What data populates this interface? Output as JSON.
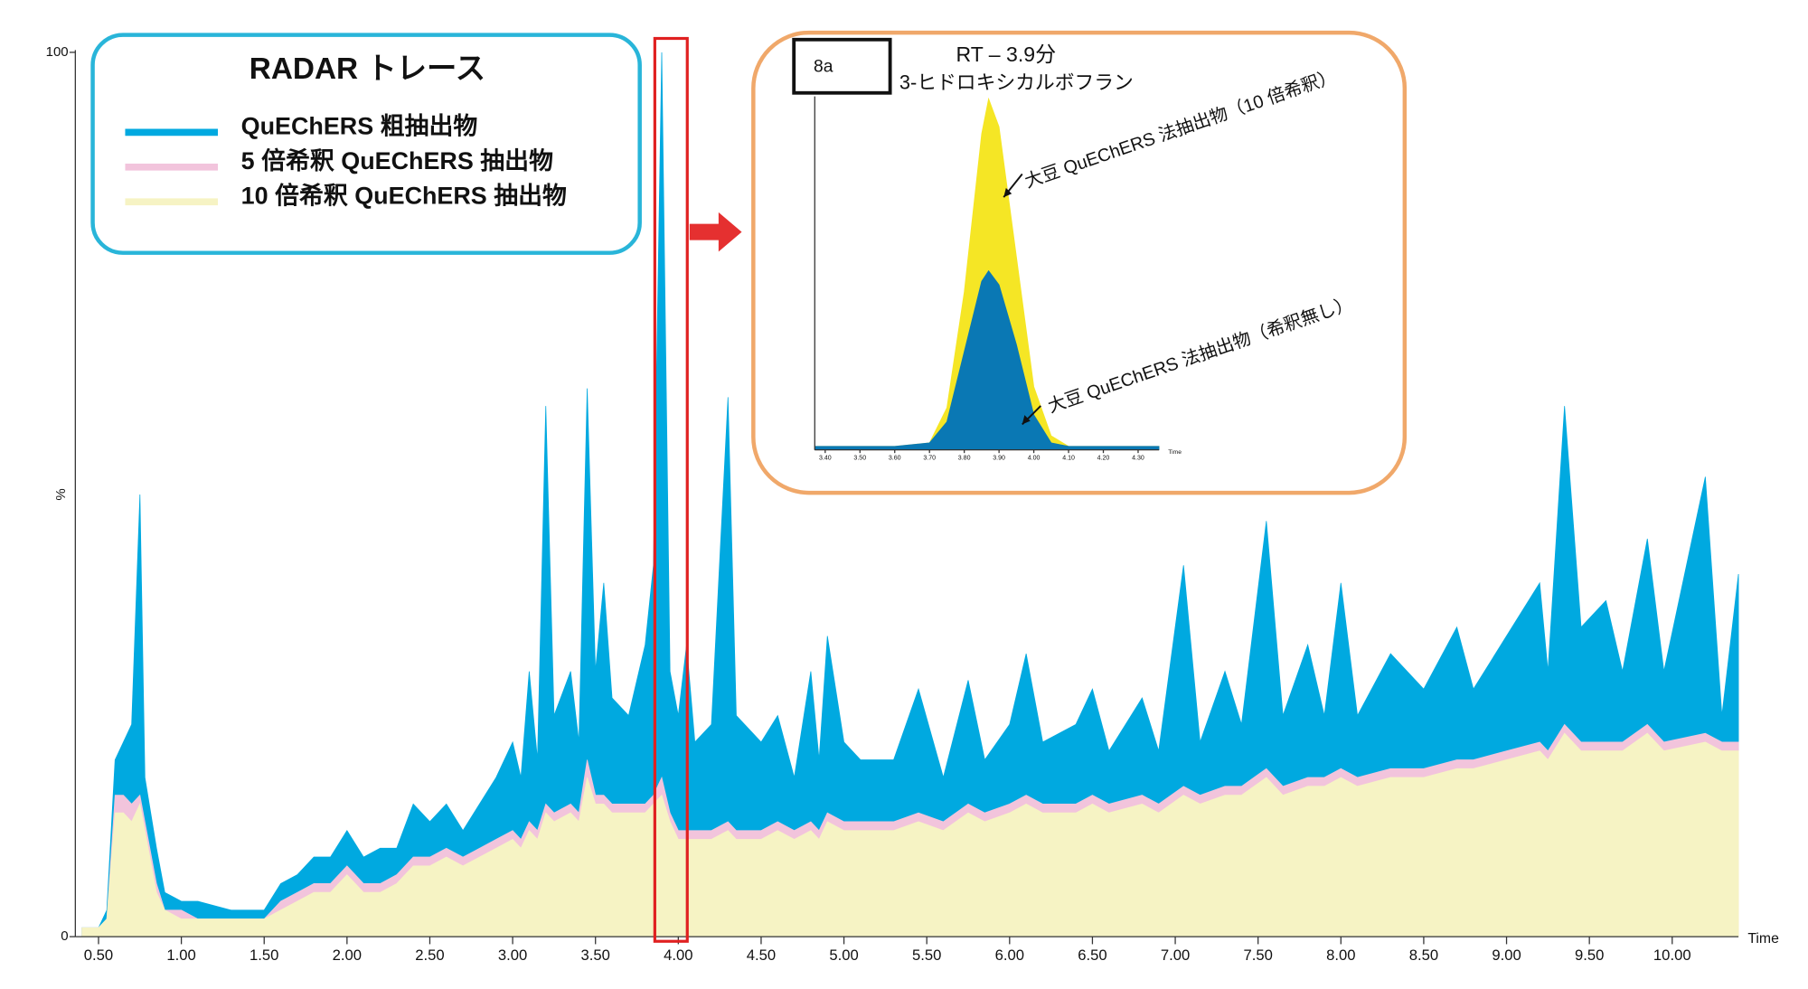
{
  "chart_data": [
    {
      "type": "area",
      "legend_title": "RADAR トレース",
      "x_label": "Time",
      "y_label": "%",
      "xlim": [
        0.36,
        10.4
      ],
      "ylim": [
        0,
        100
      ],
      "yticks": [
        0,
        100
      ],
      "xticks": [
        {
          "value": 0.5,
          "label": "0.50"
        },
        {
          "value": 1,
          "label": "1.00"
        },
        {
          "value": 1.5,
          "label": "1.50"
        },
        {
          "value": 2,
          "label": "2.00"
        },
        {
          "value": 2.5,
          "label": "2.50"
        },
        {
          "value": 3,
          "label": "3.00"
        },
        {
          "value": 3.5,
          "label": "3.50"
        },
        {
          "value": 4,
          "label": "4.00"
        },
        {
          "value": 4.5,
          "label": "4.50"
        },
        {
          "value": 5,
          "label": "5.00"
        },
        {
          "value": 5.5,
          "label": "5.50"
        },
        {
          "value": 6,
          "label": "6.00"
        },
        {
          "value": 6.5,
          "label": "6.50"
        },
        {
          "value": 7,
          "label": "7.00"
        },
        {
          "value": 7.5,
          "label": "7.50"
        },
        {
          "value": 8,
          "label": "8.00"
        },
        {
          "value": 8.5,
          "label": "8.50"
        },
        {
          "value": 9,
          "label": "9.00"
        },
        {
          "value": 9.5,
          "label": "9.50"
        },
        {
          "value": 10,
          "label": "10.00"
        }
      ],
      "x": [
        0.4,
        0.5,
        0.55,
        0.6,
        0.65,
        0.7,
        0.75,
        0.78,
        0.85,
        0.9,
        1.0,
        1.1,
        1.3,
        1.5,
        1.6,
        1.7,
        1.8,
        1.9,
        2.0,
        2.1,
        2.2,
        2.3,
        2.4,
        2.5,
        2.6,
        2.7,
        2.8,
        2.9,
        3.0,
        3.05,
        3.1,
        3.15,
        3.2,
        3.25,
        3.35,
        3.4,
        3.45,
        3.5,
        3.55,
        3.6,
        3.7,
        3.8,
        3.85,
        3.9,
        3.95,
        4.0,
        4.05,
        4.1,
        4.2,
        4.3,
        4.35,
        4.5,
        4.6,
        4.7,
        4.8,
        4.85,
        4.9,
        5.0,
        5.1,
        5.3,
        5.45,
        5.6,
        5.75,
        5.85,
        6.0,
        6.1,
        6.2,
        6.4,
        6.5,
        6.6,
        6.8,
        6.9,
        7.05,
        7.15,
        7.3,
        7.4,
        7.55,
        7.65,
        7.8,
        7.9,
        8.0,
        8.1,
        8.3,
        8.5,
        8.7,
        8.8,
        9.0,
        9.2,
        9.25,
        9.35,
        9.45,
        9.6,
        9.7,
        9.85,
        9.95,
        10.2,
        10.3,
        10.4
      ],
      "series": [
        {
          "name": "QuEChERS 粗抽出物",
          "color": "#00a9e0",
          "values": [
            1,
            1,
            3,
            20,
            22,
            24,
            50,
            18,
            10,
            5,
            4,
            4,
            3,
            3,
            6,
            7,
            9,
            9,
            12,
            9,
            10,
            10,
            15,
            13,
            15,
            12,
            15,
            18,
            22,
            18,
            30,
            20,
            60,
            25,
            30,
            22,
            62,
            30,
            40,
            27,
            25,
            33,
            42,
            100,
            30,
            25,
            33,
            22,
            24,
            61,
            25,
            22,
            25,
            18,
            30,
            20,
            34,
            22,
            20,
            20,
            28,
            18,
            29,
            20,
            24,
            32,
            22,
            24,
            28,
            21,
            27,
            21,
            42,
            22,
            30,
            24,
            47,
            25,
            33,
            25,
            40,
            25,
            32,
            28,
            35,
            28,
            34,
            40,
            30,
            60,
            35,
            38,
            30,
            45,
            30,
            52,
            25,
            41
          ]
        },
        {
          "name": "5 倍希釈 QuEChERS 抽出物",
          "color": "#f2c4dc",
          "values": [
            1,
            1,
            2,
            16,
            16,
            15,
            16,
            13,
            6,
            3,
            3,
            2,
            2,
            2,
            4,
            5,
            6,
            6,
            8,
            6,
            6,
            7,
            9,
            9,
            10,
            9,
            10,
            11,
            12,
            11,
            13,
            12,
            15,
            14,
            15,
            14,
            20,
            16,
            16,
            15,
            15,
            15,
            16,
            18,
            14,
            12,
            12,
            12,
            12,
            13,
            12,
            12,
            13,
            12,
            13,
            12,
            14,
            13,
            13,
            13,
            14,
            13,
            15,
            14,
            15,
            16,
            15,
            15,
            16,
            15,
            16,
            15,
            17,
            16,
            17,
            17,
            19,
            17,
            18,
            18,
            19,
            18,
            19,
            19,
            20,
            20,
            21,
            22,
            21,
            24,
            22,
            22,
            22,
            24,
            22,
            23,
            22,
            22
          ]
        },
        {
          "name": "10 倍希釈 QuEChERS 抽出物",
          "color": "#f6f3c4",
          "values": [
            1,
            1,
            2,
            14,
            14,
            13,
            15,
            12,
            5,
            3,
            2,
            2,
            2,
            2,
            3,
            4,
            5,
            5,
            7,
            5,
            5,
            6,
            8,
            8,
            9,
            8,
            9,
            10,
            11,
            10,
            12,
            11,
            14,
            13,
            14,
            13,
            18,
            15,
            15,
            14,
            14,
            14,
            15,
            16,
            13,
            11,
            11,
            11,
            11,
            12,
            11,
            11,
            12,
            11,
            12,
            11,
            13,
            12,
            12,
            12,
            13,
            12,
            14,
            13,
            14,
            15,
            14,
            14,
            15,
            14,
            15,
            14,
            16,
            15,
            16,
            16,
            18,
            16,
            17,
            17,
            18,
            17,
            18,
            18,
            19,
            19,
            20,
            21,
            20,
            23,
            21,
            21,
            21,
            23,
            21,
            22,
            21,
            21
          ]
        }
      ]
    },
    {
      "type": "area",
      "label": "8a",
      "title": "RT – 3.9分",
      "subtitle": "3-ヒドロキシカルボフラン",
      "x_label": "Time",
      "xlim": [
        3.37,
        4.36
      ],
      "ylim": [
        0,
        100
      ],
      "xticks": [
        {
          "value": 3.4,
          "label": "3.40"
        },
        {
          "value": 3.5,
          "label": "3.50"
        },
        {
          "value": 3.6,
          "label": "3.60"
        },
        {
          "value": 3.7,
          "label": "3.70"
        },
        {
          "value": 3.8,
          "label": "3.80"
        },
        {
          "value": 3.9,
          "label": "3.90"
        },
        {
          "value": 4.0,
          "label": "4.00"
        },
        {
          "value": 4.1,
          "label": "4.10"
        },
        {
          "value": 4.2,
          "label": "4.20"
        },
        {
          "value": 4.3,
          "label": "4.30"
        }
      ],
      "x": [
        3.37,
        3.5,
        3.6,
        3.7,
        3.75,
        3.8,
        3.85,
        3.87,
        3.9,
        3.95,
        4.0,
        4.05,
        4.1,
        4.2,
        4.36
      ],
      "series": [
        {
          "color": "#f5e625",
          "values": [
            1,
            1,
            1,
            2,
            12,
            45,
            90,
            100,
            92,
            55,
            18,
            4,
            1,
            1,
            1
          ]
        },
        {
          "color": "#0a78b4",
          "values": [
            1,
            1,
            1,
            2,
            8,
            28,
            48,
            51,
            47,
            30,
            10,
            2,
            1,
            1,
            1
          ]
        }
      ],
      "annotations": [
        "大豆 QuEChERS 法抽出物（10 倍希釈）",
        "大豆 QuEChERS 法抽出物（希釈無し）"
      ]
    }
  ]
}
